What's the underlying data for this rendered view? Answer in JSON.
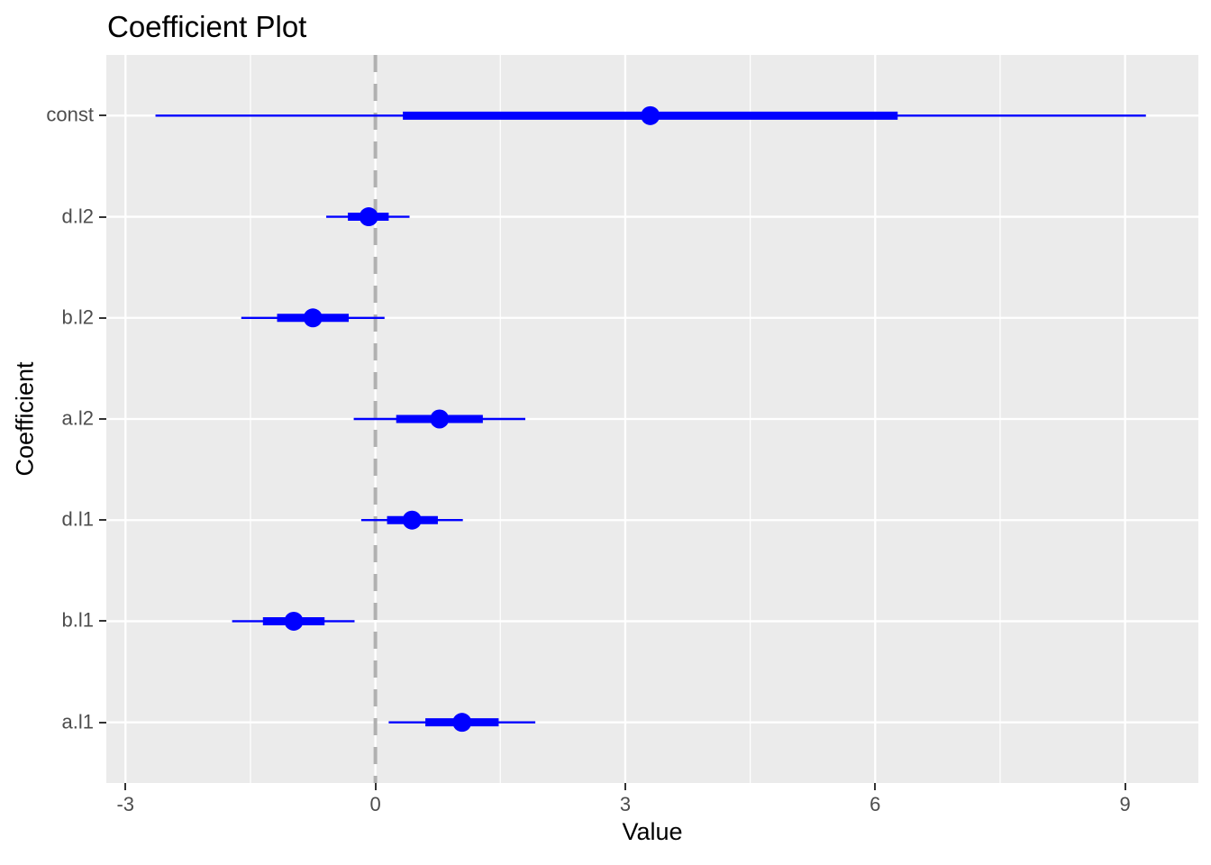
{
  "chart_data": {
    "type": "scatter",
    "subtype": "coefficient-dot-and-whisker-plot",
    "title": "Coefficient Plot",
    "xlabel": "Value",
    "ylabel": "Coefficient",
    "xlim": [
      -3.23,
      9.88
    ],
    "x_ticks": [
      -3,
      0,
      3,
      6,
      9
    ],
    "x_tick_labels": [
      "-3",
      "0",
      "3",
      "6",
      "9"
    ],
    "x_minor_gridlines": [
      -1.5,
      1.5,
      4.5,
      7.5
    ],
    "grid": "on",
    "legend": "none",
    "reference_line": {
      "x": 0,
      "style": "dashed"
    },
    "categories_top_to_bottom": [
      "const",
      "d.l2",
      "b.l2",
      "a.l2",
      "d.l1",
      "b.l1",
      "a.l1"
    ],
    "points": [
      {
        "label": "const",
        "estimate": 3.3,
        "inner_interval": [
          0.33,
          6.27
        ],
        "outer_interval": [
          -2.64,
          9.25
        ]
      },
      {
        "label": "d.l2",
        "estimate": -0.08,
        "inner_interval": [
          -0.33,
          0.16
        ],
        "outer_interval": [
          -0.59,
          0.41
        ]
      },
      {
        "label": "b.l2",
        "estimate": -0.75,
        "inner_interval": [
          -1.18,
          -0.32
        ],
        "outer_interval": [
          -1.61,
          0.11
        ]
      },
      {
        "label": "a.l2",
        "estimate": 0.77,
        "inner_interval": [
          0.25,
          1.29
        ],
        "outer_interval": [
          -0.26,
          1.8
        ]
      },
      {
        "label": "d.l1",
        "estimate": 0.44,
        "inner_interval": [
          0.14,
          0.75
        ],
        "outer_interval": [
          -0.17,
          1.05
        ]
      },
      {
        "label": "b.l1",
        "estimate": -0.98,
        "inner_interval": [
          -1.35,
          -0.61
        ],
        "outer_interval": [
          -1.72,
          -0.25
        ]
      },
      {
        "label": "a.l1",
        "estimate": 1.04,
        "inner_interval": [
          0.6,
          1.48
        ],
        "outer_interval": [
          0.16,
          1.92
        ]
      }
    ],
    "colors": {
      "point": "#0000FF",
      "interval": "#0000FF",
      "panel_background": "#EBEBEB",
      "gridline": "#FFFFFF",
      "reference_line": "#B0B0B0",
      "axis_text": "#4D4D4D",
      "tick_mark": "#333333",
      "title_text": "#000000"
    }
  }
}
